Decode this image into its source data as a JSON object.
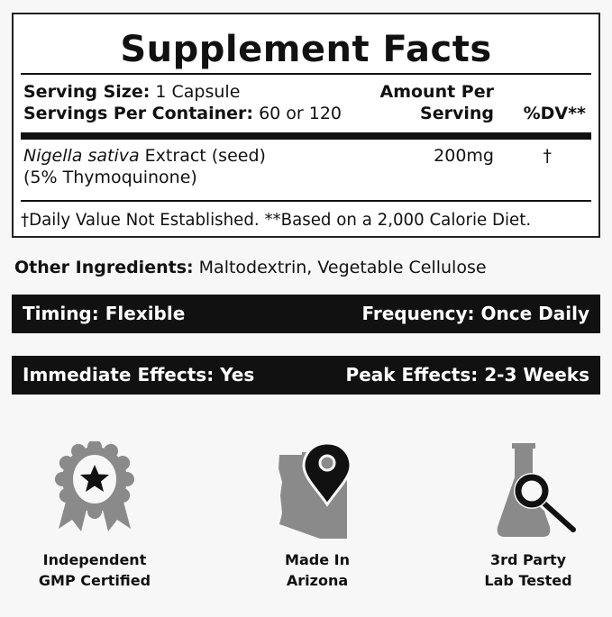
{
  "facts": {
    "title": "Supplement Facts",
    "serving_size_label": "Serving Size:",
    "serving_size_value": "1 Capsule",
    "servings_label": "Servings Per Container:",
    "servings_value": "60 or 120",
    "amount_header_1": "Amount Per",
    "amount_header_2": "Serving",
    "dv_header": "%DV**",
    "ingredient_italic": "Nigella sativa",
    "ingredient_rest": " Extract (seed)",
    "ingredient_line2": "(5% Thymoquinone)",
    "ingredient_amount": "200mg",
    "ingredient_dv": "†",
    "footnote": "†Daily Value Not Established. **Based on a 2,000 Calorie Diet."
  },
  "other_ingredients": {
    "label": "Other Ingredients:",
    "value": "Maltodextrin, Vegetable Cellulose"
  },
  "bars": [
    {
      "left": "Timing: Flexible",
      "right": "Frequency: Once Daily"
    },
    {
      "left": "Immediate Effects: Yes",
      "right": "Peak Effects: 2-3 Weeks"
    }
  ],
  "badges": [
    {
      "icon": "award-ribbon-icon",
      "line1": "Independent",
      "line2": "GMP Certified"
    },
    {
      "icon": "arizona-map-pin-icon",
      "line1": "Made In",
      "line2": "Arizona"
    },
    {
      "icon": "lab-flask-magnifier-icon",
      "line1": "3rd Party",
      "line2": "Lab Tested"
    }
  ],
  "colors": {
    "icon_gray": "#8a8a8a",
    "bar": "#111111",
    "background": "#f7f7f7"
  }
}
